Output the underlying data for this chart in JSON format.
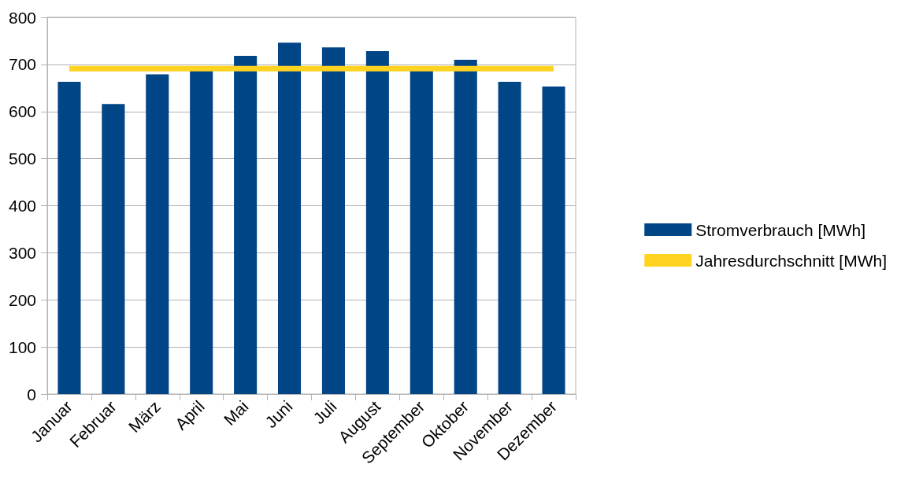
{
  "chart_data": {
    "type": "bar",
    "categories": [
      "Januar",
      "Februar",
      "März",
      "April",
      "Mai",
      "Juni",
      "Juli",
      "August",
      "September",
      "Oktober",
      "November",
      "Dezember"
    ],
    "series": [
      {
        "name": "Stromverbrauch [MWh]",
        "color": "#004586",
        "values": [
          663,
          616,
          679,
          690,
          718,
          746,
          736,
          728,
          690,
          710,
          663,
          653
        ]
      },
      {
        "name": "Jahresdurchschnitt [MWh]",
        "type": "line",
        "color": "#ffd320",
        "values": [
          691,
          691,
          691,
          691,
          691,
          691,
          691,
          691,
          691,
          691,
          691,
          691
        ]
      }
    ],
    "ylim": [
      0,
      800
    ],
    "yticks": [
      0,
      100,
      200,
      300,
      400,
      500,
      600,
      700,
      800
    ],
    "grid": "y",
    "legend": "right",
    "marker": "none"
  }
}
